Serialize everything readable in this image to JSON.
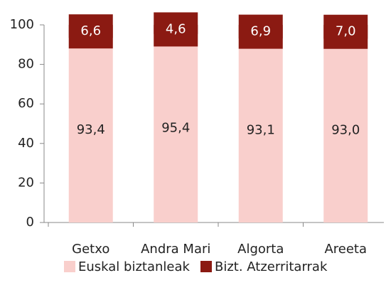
{
  "chart_data": {
    "type": "stacked_bar",
    "categories": [
      "Getxo",
      "Andra Mari",
      "Algorta",
      "Areeta"
    ],
    "series": [
      {
        "name": "Euskal biztanleak",
        "color": "#f9cfcc",
        "values": [
          93.4,
          95.4,
          93.1,
          93.0
        ],
        "value_labels": [
          "93,4",
          "95,4",
          "93,1",
          "93,0"
        ]
      },
      {
        "name": "Bizt. Atzerritarrak",
        "color": "#8b1a12",
        "values": [
          6.6,
          4.6,
          6.9,
          7.0
        ],
        "value_labels": [
          "6,6",
          "4,6",
          "6,9",
          "7,0"
        ]
      }
    ],
    "ylim": [
      0,
      100
    ],
    "yticks": [
      0,
      20,
      40,
      60,
      80,
      100
    ],
    "grid": false,
    "legend": "bottom"
  }
}
